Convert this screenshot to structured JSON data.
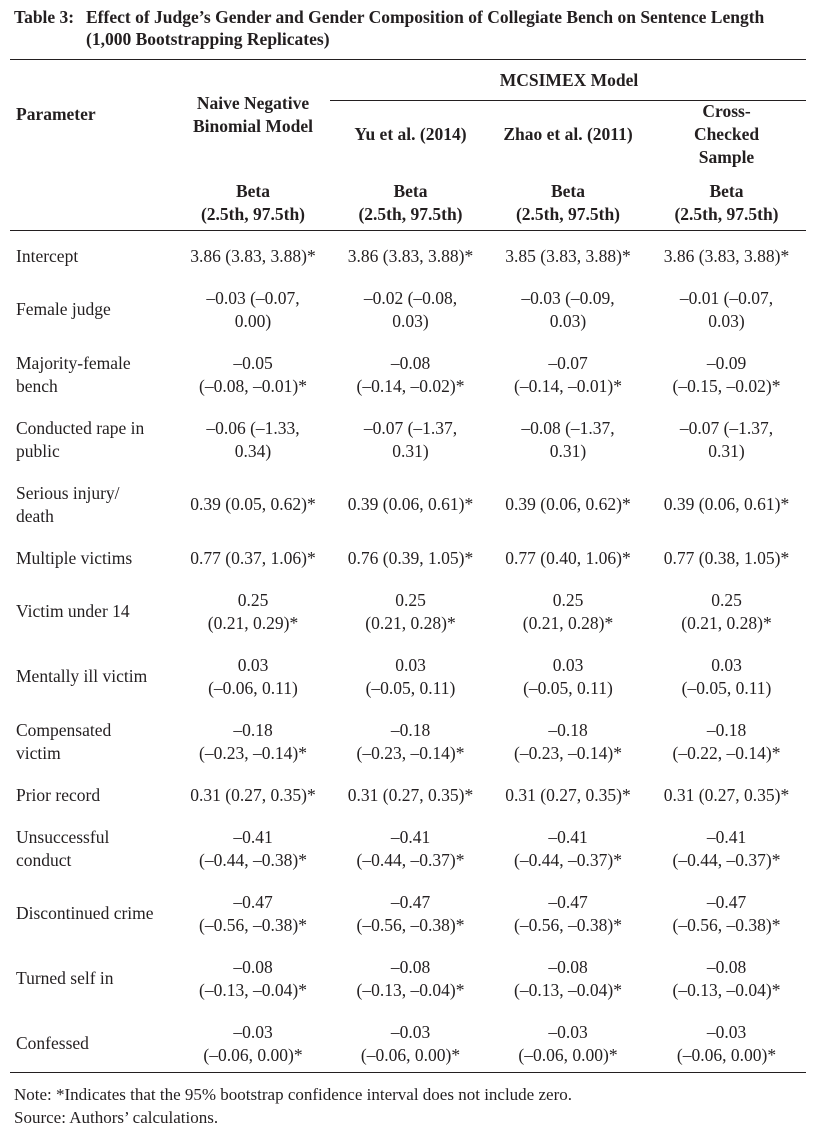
{
  "caption": {
    "label": "Table 3:",
    "text": "Effect of Judge’s Gender and Gender Composition of Collegiate Bench on Sentence Length (1,000 Bootstrapping Replicates)"
  },
  "header": {
    "parameter": "Parameter",
    "mcsimex": "MCSIMEX Model",
    "models": [
      "Naive Negative Binomial Model",
      "Yu et al. (2014)",
      "Zhao et al. (2011)",
      "Cross-Checked Sample"
    ],
    "stat_line1": "Beta",
    "stat_line2": "(2.5th, 97.5th)"
  },
  "rows": [
    {
      "label": "Intercept",
      "cells": [
        [
          "3.86 (3.83, 3.88)*"
        ],
        [
          "3.86 (3.83, 3.88)*"
        ],
        [
          "3.85 (3.83, 3.88)*"
        ],
        [
          "3.86 (3.83, 3.88)*"
        ]
      ]
    },
    {
      "label": "Female judge",
      "cells": [
        [
          "–0.03 (–0.07,",
          "0.00)"
        ],
        [
          "–0.02 (–0.08,",
          "0.03)"
        ],
        [
          "–0.03 (–0.09,",
          "0.03)"
        ],
        [
          "–0.01 (–0.07,",
          "0.03)"
        ]
      ]
    },
    {
      "label": "Majority-female bench",
      "cells": [
        [
          "–0.05",
          "(–0.08, –0.01)*"
        ],
        [
          "–0.08",
          "(–0.14, –0.02)*"
        ],
        [
          "–0.07",
          "(–0.14, –0.01)*"
        ],
        [
          "–0.09",
          "(–0.15, –0.02)*"
        ]
      ]
    },
    {
      "label": "Conducted rape in public",
      "cells": [
        [
          "–0.06 (–1.33,",
          "0.34)"
        ],
        [
          "–0.07 (–1.37,",
          "0.31)"
        ],
        [
          "–0.08 (–1.37,",
          "0.31)"
        ],
        [
          "–0.07 (–1.37,",
          "0.31)"
        ]
      ]
    },
    {
      "label": "Serious injury/ death",
      "cells": [
        [
          "0.39 (0.05, 0.62)*"
        ],
        [
          "0.39 (0.06, 0.61)*"
        ],
        [
          "0.39 (0.06, 0.62)*"
        ],
        [
          "0.39 (0.06, 0.61)*"
        ]
      ]
    },
    {
      "label": "Multiple victims",
      "cells": [
        [
          "0.77 (0.37, 1.06)*"
        ],
        [
          "0.76 (0.39, 1.05)*"
        ],
        [
          "0.77 (0.40, 1.06)*"
        ],
        [
          "0.77 (0.38, 1.05)*"
        ]
      ]
    },
    {
      "label": "Victim under 14",
      "cells": [
        [
          "0.25",
          "(0.21, 0.29)*"
        ],
        [
          "0.25",
          "(0.21, 0.28)*"
        ],
        [
          "0.25",
          "(0.21, 0.28)*"
        ],
        [
          "0.25",
          "(0.21, 0.28)*"
        ]
      ]
    },
    {
      "label": "Mentally ill victim",
      "cells": [
        [
          "0.03",
          "(–0.06, 0.11)"
        ],
        [
          "0.03",
          "(–0.05, 0.11)"
        ],
        [
          "0.03",
          "(–0.05, 0.11)"
        ],
        [
          "0.03",
          "(–0.05, 0.11)"
        ]
      ]
    },
    {
      "label": "Compensated victim",
      "cells": [
        [
          "–0.18",
          "(–0.23, –0.14)*"
        ],
        [
          "–0.18",
          "(–0.23, –0.14)*"
        ],
        [
          "–0.18",
          "(–0.23, –0.14)*"
        ],
        [
          "–0.18",
          "(–0.22, –0.14)*"
        ]
      ]
    },
    {
      "label": "Prior record",
      "cells": [
        [
          "0.31 (0.27, 0.35)*"
        ],
        [
          "0.31 (0.27, 0.35)*"
        ],
        [
          "0.31 (0.27, 0.35)*"
        ],
        [
          "0.31 (0.27, 0.35)*"
        ]
      ]
    },
    {
      "label": "Unsuccessful conduct",
      "cells": [
        [
          "–0.41",
          "(–0.44, –0.38)*"
        ],
        [
          "–0.41",
          "(–0.44, –0.37)*"
        ],
        [
          "–0.41",
          "(–0.44, –0.37)*"
        ],
        [
          "–0.41",
          "(–0.44, –0.37)*"
        ]
      ]
    },
    {
      "label": "Discontinued crime",
      "cells": [
        [
          "–0.47",
          "(–0.56, –0.38)*"
        ],
        [
          "–0.47",
          "(–0.56, –0.38)*"
        ],
        [
          "–0.47",
          "(–0.56, –0.38)*"
        ],
        [
          "–0.47",
          "(–0.56, –0.38)*"
        ]
      ]
    },
    {
      "label": "Turned self in",
      "cells": [
        [
          "–0.08",
          "(–0.13, –0.04)*"
        ],
        [
          "–0.08",
          "(–0.13, –0.04)*"
        ],
        [
          "–0.08",
          "(–0.13, –0.04)*"
        ],
        [
          "–0.08",
          "(–0.13, –0.04)*"
        ]
      ]
    },
    {
      "label": "Confessed",
      "cells": [
        [
          "–0.03",
          "(–0.06, 0.00)*"
        ],
        [
          "–0.03",
          "(–0.06, 0.00)*"
        ],
        [
          "–0.03",
          "(–0.06, 0.00)*"
        ],
        [
          "–0.03",
          "(–0.06, 0.00)*"
        ]
      ]
    }
  ],
  "note": "Note: *Indicates that the 95% bootstrap confidence interval does not include zero.",
  "source": "Source: Authors’ calculations."
}
